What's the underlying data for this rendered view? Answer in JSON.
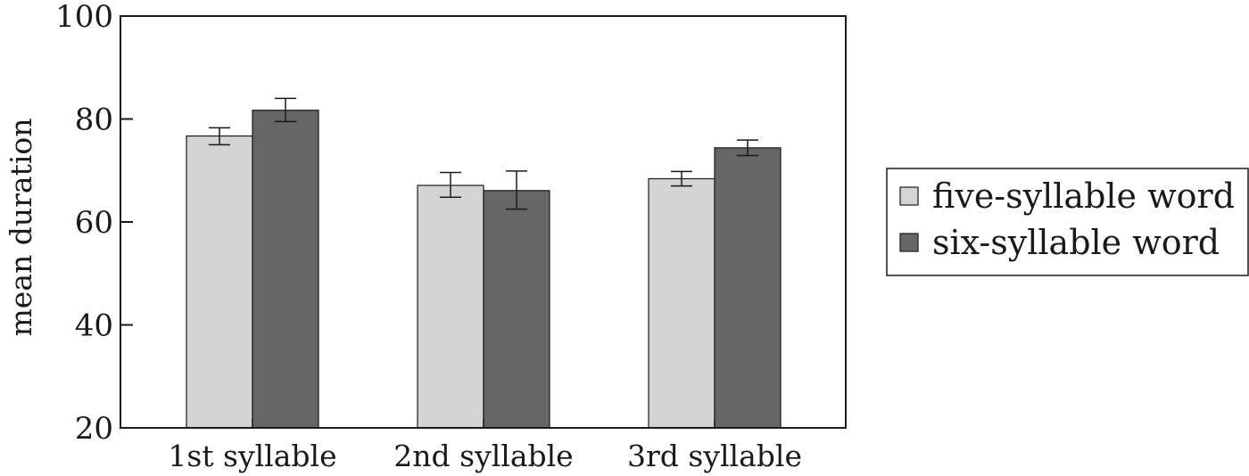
{
  "chart_data": {
    "type": "bar",
    "categories": [
      "1st syllable",
      "2nd syllable",
      "3rd syllable"
    ],
    "series": [
      {
        "name": "five-syllable word",
        "color": "#d4d4d4",
        "values": [
          76.7,
          67.1,
          68.4
        ],
        "error": [
          [
            75.0,
            78.3
          ],
          [
            64.8,
            69.6
          ],
          [
            67.0,
            69.8
          ]
        ]
      },
      {
        "name": "six-syllable word",
        "color": "#666666",
        "values": [
          81.7,
          66.1,
          74.4
        ],
        "error": [
          [
            79.5,
            84.0
          ],
          [
            62.5,
            69.9
          ],
          [
            72.9,
            75.9
          ]
        ]
      }
    ],
    "xlabel": "",
    "ylabel": "mean duration",
    "ylim": [
      20,
      100
    ],
    "yticks": [
      "20",
      "40",
      "60",
      "80",
      "100"
    ],
    "grid": false,
    "legend_position": "right"
  }
}
